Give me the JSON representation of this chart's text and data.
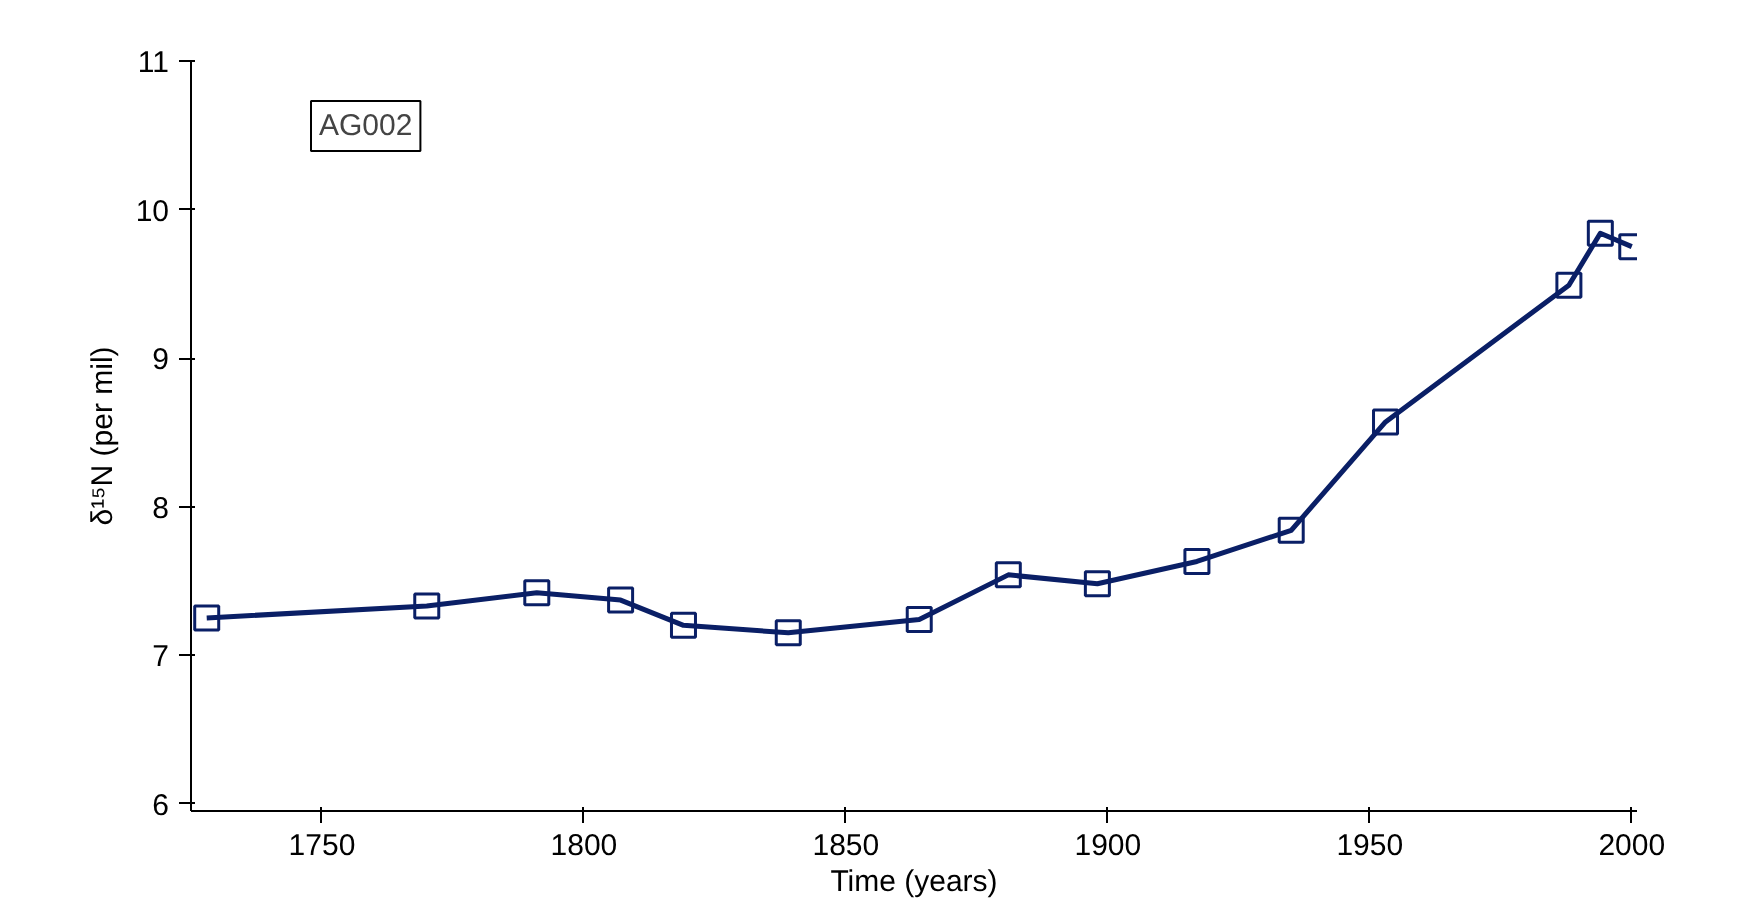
{
  "chart_data": {
    "type": "line",
    "xlabel": "Time (years)",
    "ylabel": "δ¹⁵N (per mil)",
    "annotations": [
      "AG002"
    ],
    "x": [
      1728,
      1770,
      1791,
      1807,
      1819,
      1839,
      1864,
      1881,
      1898,
      1917,
      1935,
      1953,
      1988,
      1994,
      2000
    ],
    "series": [
      {
        "color": "#0a1f66",
        "values": [
          7.25,
          7.33,
          7.42,
          7.37,
          7.2,
          7.15,
          7.24,
          7.54,
          7.48,
          7.63,
          7.84,
          8.57,
          9.49,
          9.84,
          9.75
        ]
      }
    ],
    "marker": "square",
    "line_style": "solid",
    "xlim": [
      1725,
      2001
    ],
    "xticks": [
      1750,
      1800,
      1850,
      1900,
      1950,
      2000
    ],
    "ylim": [
      5.95,
      11
    ],
    "yticks": [
      6,
      7,
      8,
      9,
      10,
      11
    ],
    "grid": false
  }
}
